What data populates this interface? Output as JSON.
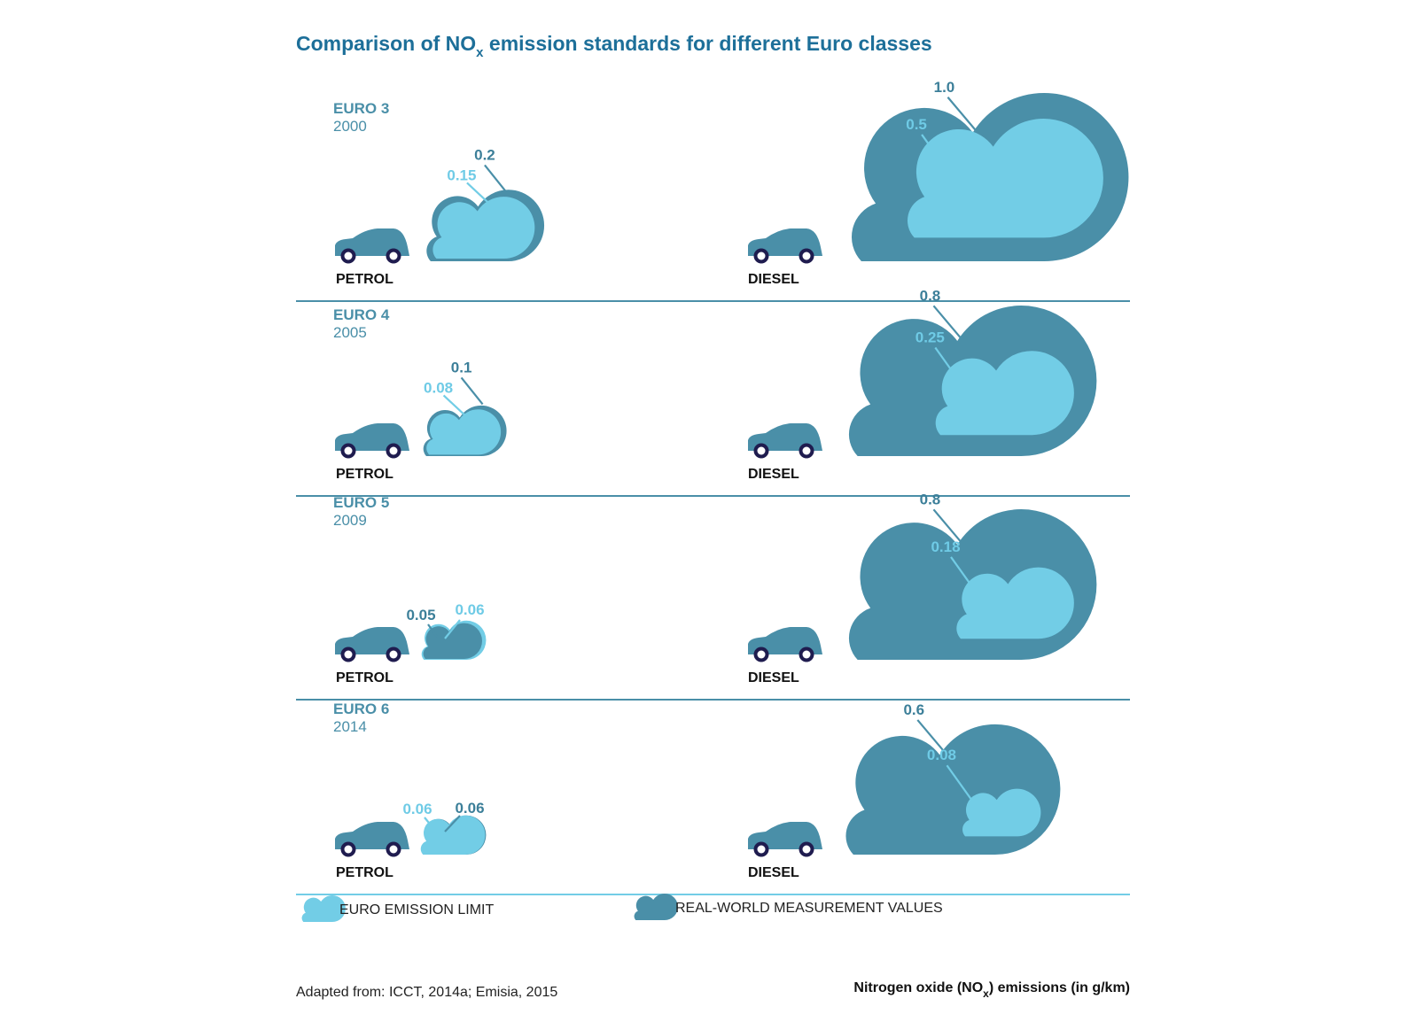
{
  "title_main": "Comparison of NO",
  "title_sub": "x",
  "title_tail": " emission standards for different Euro classes",
  "colors": {
    "dark": "#4a8fa8",
    "light": "#72cde6",
    "wheel": "#1f1c4f",
    "rule": "#4a8fa8",
    "rule_last": "#72cde6"
  },
  "vehicles": {
    "petrol": "PETROL",
    "diesel": "DIESEL"
  },
  "legend": {
    "limit": "EURO EMISSION LIMIT",
    "real": "REAL-WORLD MEASUREMENT VALUES"
  },
  "source": "Adapted from: ICCT, 2014a; Emisia, 2015",
  "units": {
    "main": "Nitrogen oxide (NO",
    "sub": "x",
    "tail": ") emissions (in g/km)"
  },
  "chart_data": {
    "type": "other",
    "unit": "g/km",
    "series": [
      {
        "name": "EURO EMISSION LIMIT"
      },
      {
        "name": "REAL-WORLD MEASUREMENT VALUES"
      }
    ],
    "classes": [
      {
        "label": "EURO 3",
        "year": "2000",
        "petrol": {
          "limit": 0.15,
          "limit_label": "0.15",
          "real": 0.2,
          "real_label": "0.2"
        },
        "diesel": {
          "limit": 0.5,
          "limit_label": "0.5",
          "real": 1.0,
          "real_label": "1.0"
        }
      },
      {
        "label": "EURO 4",
        "year": "2005",
        "petrol": {
          "limit": 0.08,
          "limit_label": "0.08",
          "real": 0.1,
          "real_label": "0.1"
        },
        "diesel": {
          "limit": 0.25,
          "limit_label": "0.25",
          "real": 0.8,
          "real_label": "0.8"
        }
      },
      {
        "label": "EURO 5",
        "year": "2009",
        "petrol": {
          "limit": 0.06,
          "limit_label": "0.06",
          "real": 0.05,
          "real_label": "0.05"
        },
        "diesel": {
          "limit": 0.18,
          "limit_label": "0.18",
          "real": 0.8,
          "real_label": "0.8"
        }
      },
      {
        "label": "EURO 6",
        "year": "2014",
        "petrol": {
          "limit": 0.06,
          "limit_label": "0.06",
          "real": 0.06,
          "real_label": "0.06"
        },
        "diesel": {
          "limit": 0.08,
          "limit_label": "0.08",
          "real": 0.6,
          "real_label": "0.6"
        }
      }
    ]
  }
}
